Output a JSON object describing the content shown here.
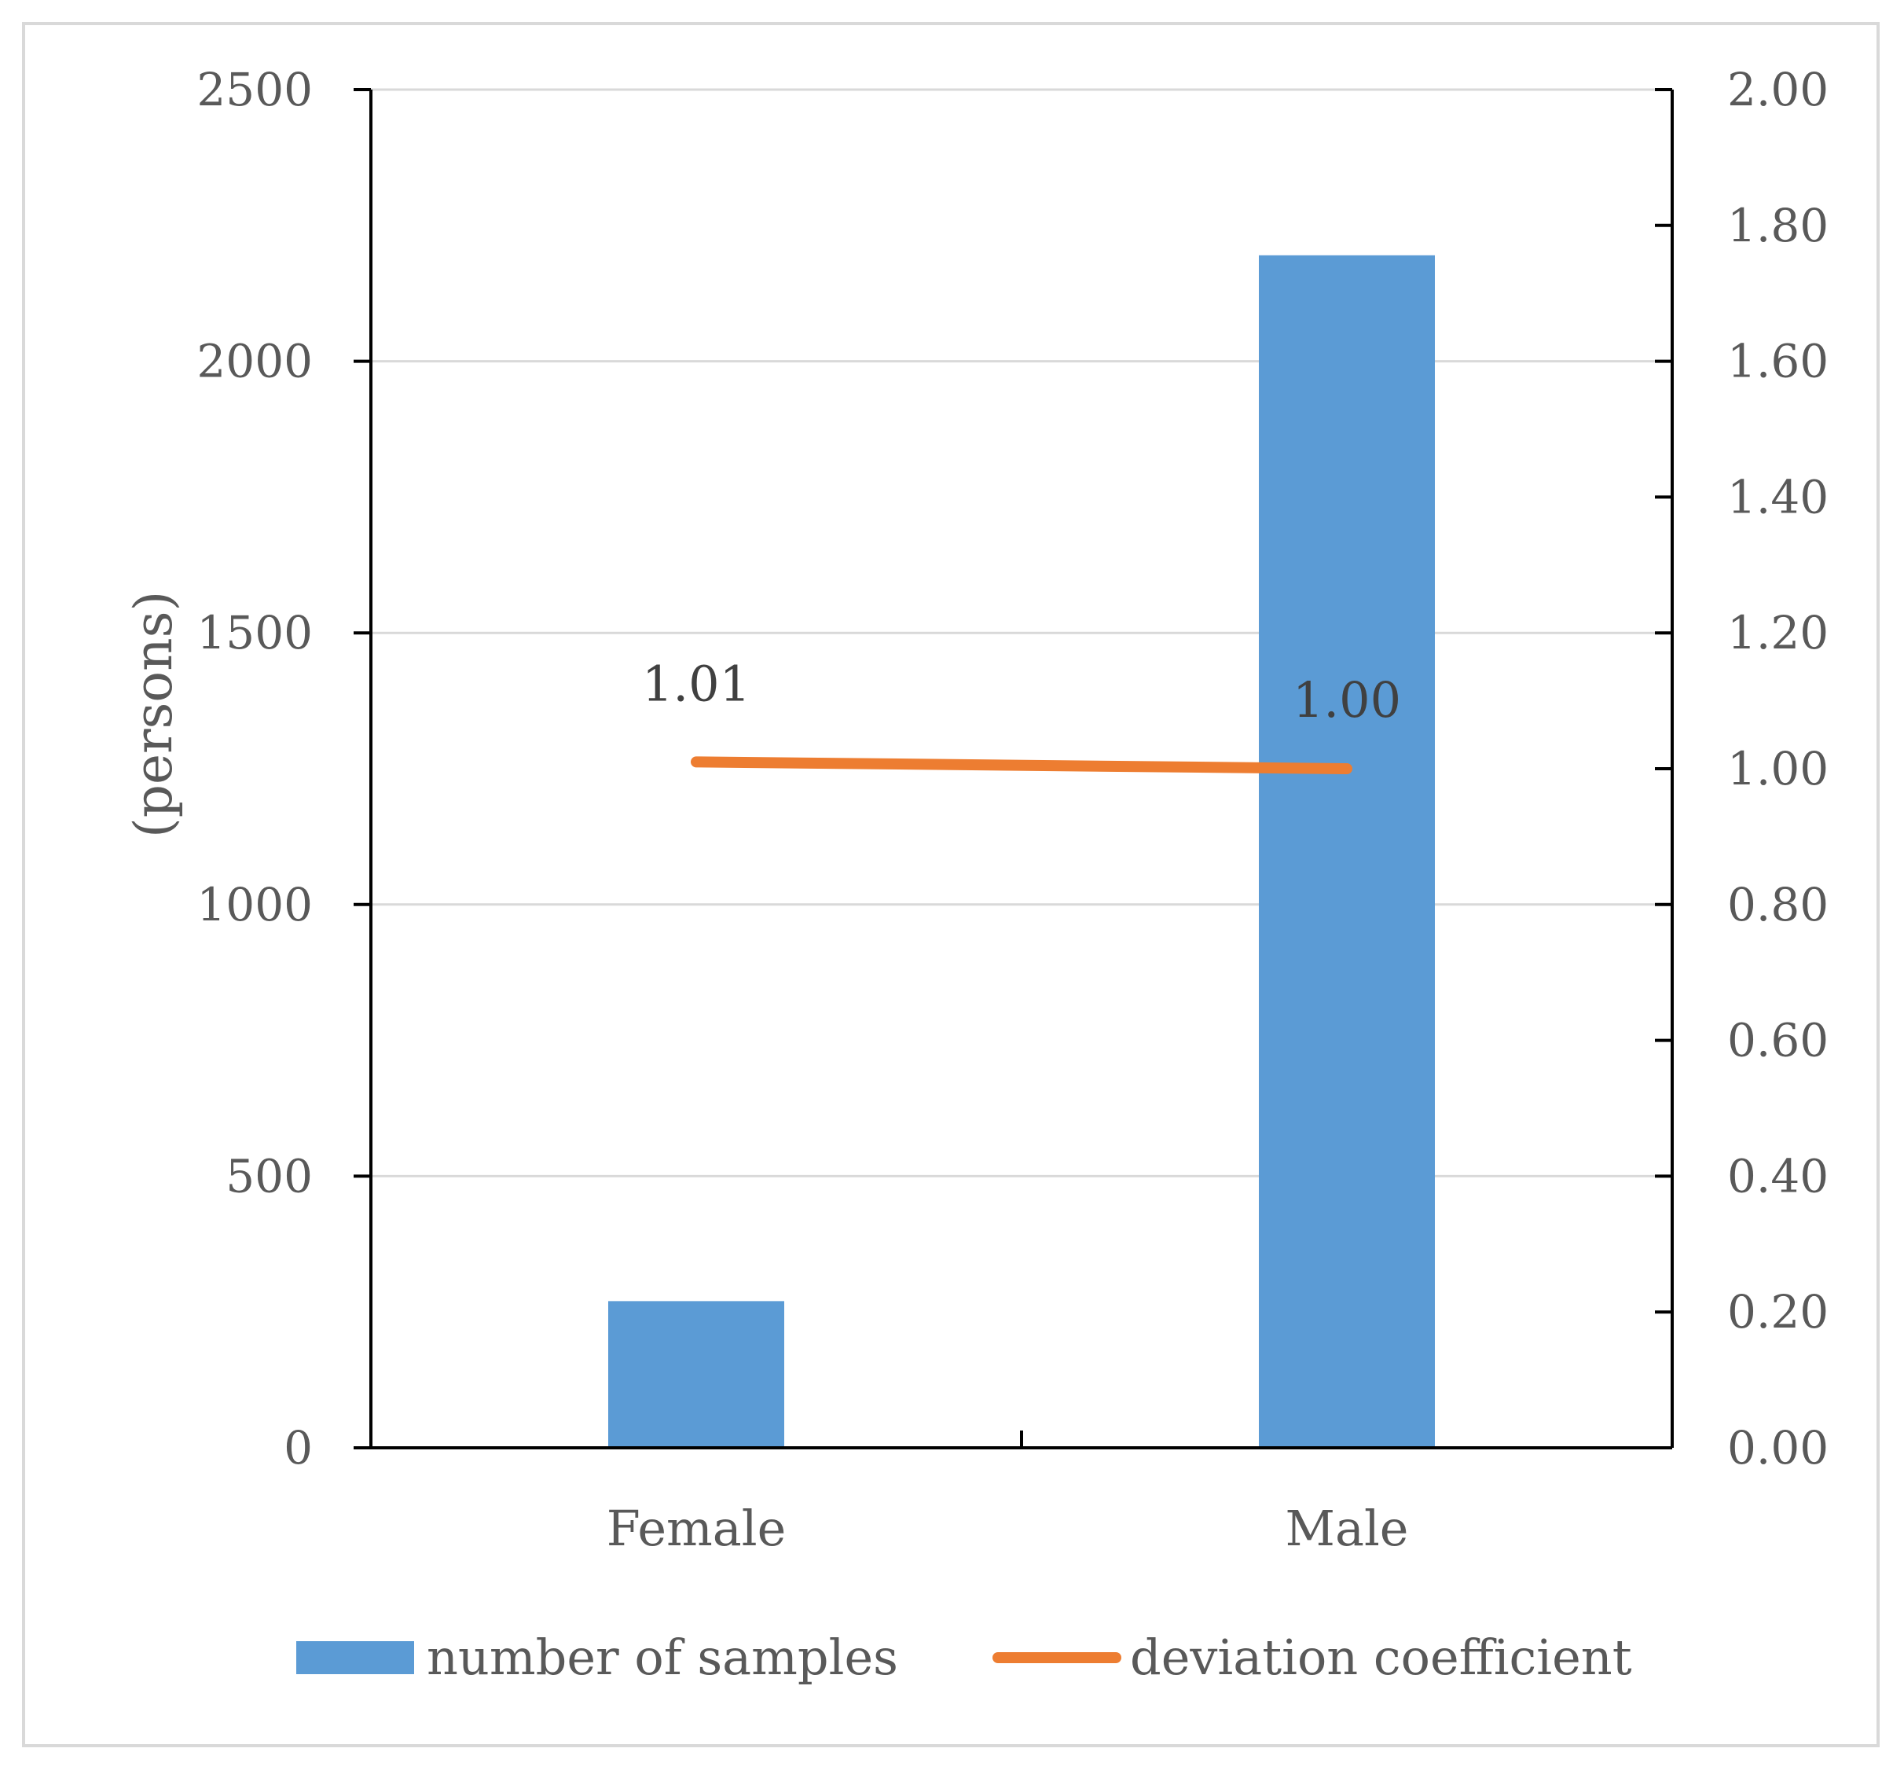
{
  "chart_data": {
    "type": "bar",
    "categories": [
      "Female",
      "Male"
    ],
    "series": [
      {
        "name": "number of samples",
        "type": "bar",
        "axis": "left",
        "color": "#5b9bd5",
        "values": [
          270,
          2195
        ]
      },
      {
        "name": "deviation coefficient",
        "type": "line",
        "axis": "right",
        "color": "#ed7d31",
        "values": [
          1.01,
          1.0
        ],
        "data_labels": [
          "1.01",
          "1.00"
        ]
      }
    ],
    "title": "",
    "xlabel": "",
    "ylabel": "(persons)",
    "ylim": [
      0,
      2500
    ],
    "yticks": [
      "0",
      "500",
      "1000",
      "1500",
      "2000",
      "2500"
    ],
    "y2lim": [
      0,
      2.0
    ],
    "y2ticks": [
      "0.00",
      "0.20",
      "0.40",
      "0.60",
      "0.80",
      "1.00",
      "1.20",
      "1.40",
      "1.60",
      "1.80",
      "2.00"
    ],
    "grid": true,
    "legend_position": "bottom",
    "gridline_color": "#d9d9d9",
    "axis_color": "#000000"
  }
}
